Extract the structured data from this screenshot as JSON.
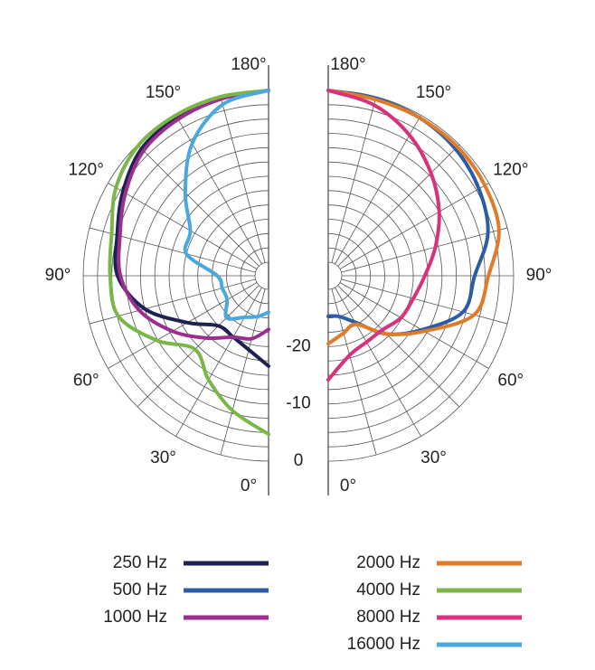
{
  "chart_data": {
    "type": "polar",
    "angles": [
      0,
      15,
      30,
      45,
      60,
      75,
      90,
      105,
      120,
      135,
      150,
      165,
      180
    ],
    "angle_ticks": [
      {
        "value": 0,
        "label": "0°"
      },
      {
        "value": 30,
        "label": "30°"
      },
      {
        "value": 60,
        "label": "60°"
      },
      {
        "value": 90,
        "label": "90°"
      },
      {
        "value": 120,
        "label": "120°"
      },
      {
        "value": 150,
        "label": "150°"
      },
      {
        "value": 180,
        "label": "180°"
      }
    ],
    "spokes": [
      15,
      45,
      75,
      105,
      135,
      165
    ],
    "rlim": [
      -30,
      0
    ],
    "rticks": [
      -20,
      -10,
      0
    ],
    "rings": [
      -27.5,
      -25,
      -22.5,
      -17.5,
      -15,
      -12.5,
      -7.5,
      -5,
      -2.5
    ],
    "series": [
      {
        "name": "250 Hz",
        "color": "#1d2250",
        "side": "left",
        "values": [
          -16.6,
          -19,
          -20,
          -20,
          -16,
          -10,
          -6,
          -5,
          -3,
          -1,
          -0.5,
          -0.3,
          0
        ]
      },
      {
        "name": "500 Hz",
        "color": "#2b5da6",
        "side": "right",
        "values": [
          -25.3,
          -25,
          -23,
          -18,
          -13.5,
          -8,
          -6.8,
          -3.5,
          -2,
          -1,
          -0.5,
          -0.3,
          0
        ]
      },
      {
        "name": "1000 Hz",
        "color": "#9a2f8e",
        "side": "left",
        "values": [
          -23,
          -21,
          -20,
          -17,
          -13,
          -9,
          -6.5,
          -5.5,
          -3.5,
          -1.5,
          -0.8,
          -0.4,
          0
        ]
      },
      {
        "name": "2000 Hz",
        "color": "#e07b2a",
        "side": "right",
        "values": [
          -20.5,
          -22,
          -22.6,
          -18,
          -13,
          -6,
          -4.4,
          -1.5,
          -0.8,
          -0.5,
          -0.5,
          -0.5,
          0
        ]
      },
      {
        "name": "4000 Hz",
        "color": "#7ab648",
        "side": "left",
        "values": [
          -4.7,
          -8,
          -11.4,
          -14.2,
          -9.8,
          -5.2,
          -4.7,
          -4,
          -1.6,
          -0.2,
          0,
          0,
          0
        ]
      },
      {
        "name": "8000 Hz",
        "color": "#d8317e",
        "side": "right",
        "values": [
          -14.2,
          -18,
          -19,
          -19,
          -17.7,
          -17,
          -15.5,
          -13,
          -10,
          -7,
          -4,
          -1.5,
          0
        ]
      },
      {
        "name": "16000 Hz",
        "color": "#4aa8dc",
        "side": "left",
        "values": [
          -26,
          -25,
          -24,
          -22,
          -24,
          -24,
          -23.4,
          -17.5,
          -16.6,
          -11.8,
          -5.7,
          -1.4,
          0
        ]
      }
    ]
  }
}
